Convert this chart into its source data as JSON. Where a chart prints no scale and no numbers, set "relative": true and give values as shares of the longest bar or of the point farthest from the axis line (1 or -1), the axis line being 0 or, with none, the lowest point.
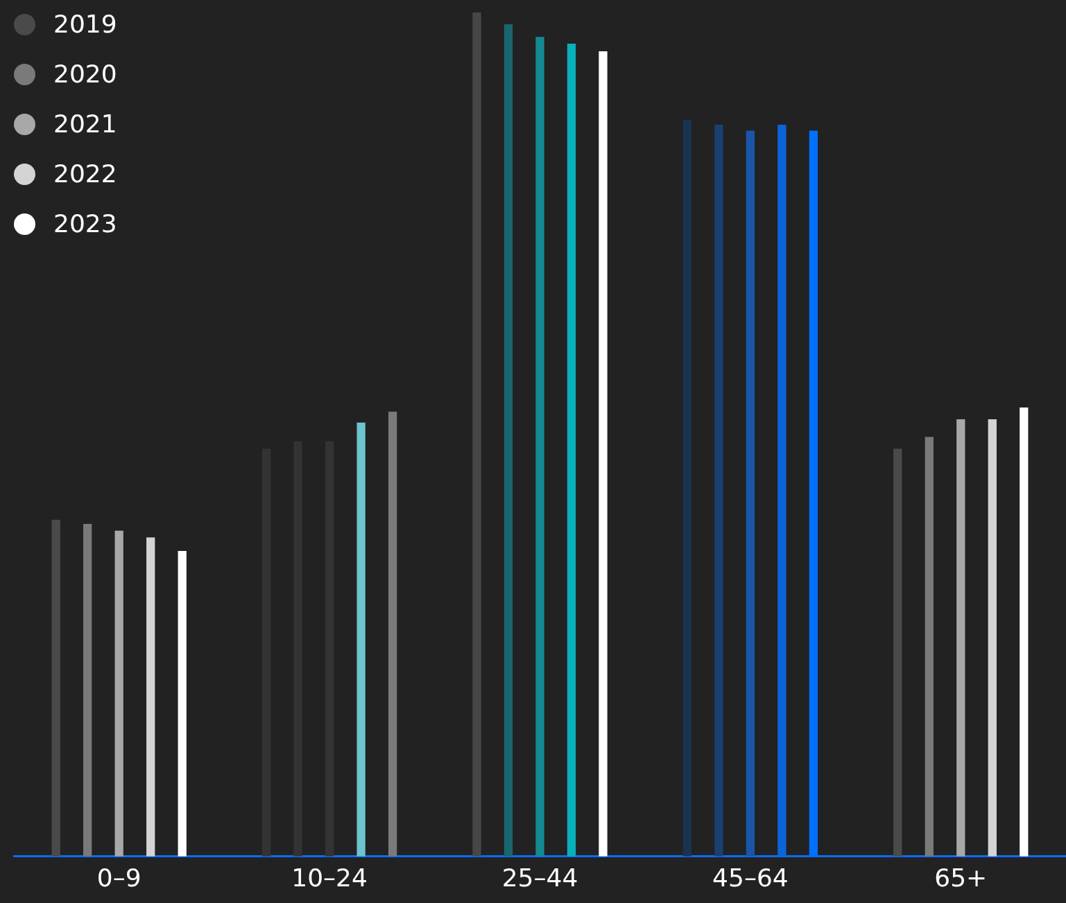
{
  "chart_data": {
    "type": "bar",
    "relative": true,
    "categories": [
      "0–9",
      "10–24",
      "25–44",
      "45–64",
      "65+"
    ],
    "legend": "top left",
    "series": [
      {
        "name": "2019",
        "color": "#4a4a4a",
        "colors": [
          "#4a4a4a",
          "#333333",
          "#474747",
          "#1b3352",
          "#4a4a4a"
        ],
        "values": [
          0.399,
          0.483,
          1,
          0.873,
          0.483
        ]
      },
      {
        "name": "2020",
        "color": "#7a7a7a",
        "colors": [
          "#7a7a7a",
          "#333333",
          "#1a6670",
          "#1a4070",
          "#7a7a7a"
        ],
        "values": [
          0.394,
          0.492,
          0.986,
          0.867,
          0.497
        ]
      },
      {
        "name": "2021",
        "color": "#a8a8a8",
        "colors": [
          "#a8a8a8",
          "#333333",
          "#138a94",
          "#1a55a8",
          "#a8a8a8"
        ],
        "values": [
          0.386,
          0.492,
          0.971,
          0.86,
          0.518
        ]
      },
      {
        "name": "2022",
        "color": "#d4d4d4",
        "colors": [
          "#d4d4d4",
          "#6cc4cc",
          "#08b0bc",
          "#0a66d8",
          "#d4d4d4"
        ],
        "values": [
          0.378,
          0.514,
          0.963,
          0.867,
          0.518
        ]
      },
      {
        "name": "2023",
        "color": "#ffffff",
        "colors": [
          "#ffffff",
          "#7a7a7a",
          "#ffffff",
          "#0070ff",
          "#ffffff"
        ],
        "values": [
          0.362,
          0.527,
          0.954,
          0.86,
          0.532
        ]
      }
    ]
  }
}
